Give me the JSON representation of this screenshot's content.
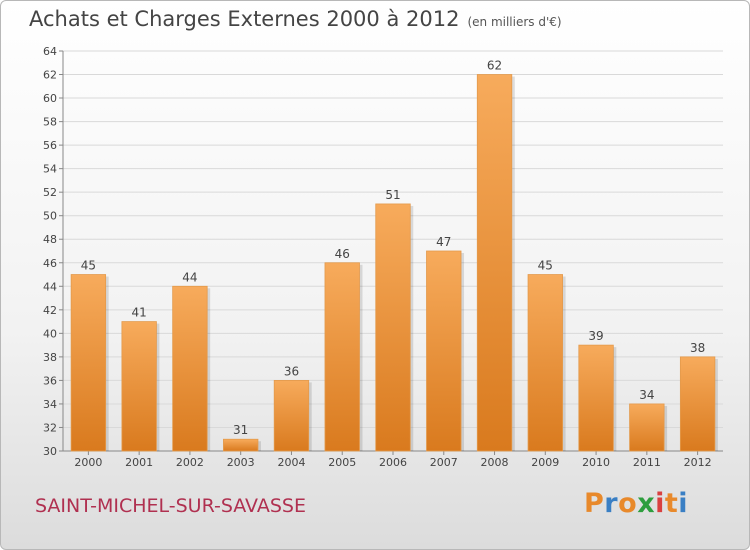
{
  "title": "Achats et Charges Externes 2000 à 2012",
  "title_unit": "(en milliers d'€)",
  "location": "SAINT-MICHEL-SUR-SAVASSE",
  "logo_text": "Proxiti",
  "logo_colors": [
    "#e8892b",
    "#3a7fc4",
    "#e8892b",
    "#2e9e3e",
    "#d94040",
    "#e8892b",
    "#3a7fc4"
  ],
  "colors": {
    "bar_light": "#f7ab5c",
    "bar_dark": "#d97a1e",
    "grid": "#d9d9d9"
  },
  "chart_data": {
    "type": "bar",
    "title": "Achats et Charges Externes 2000 à 2012",
    "xlabel": "",
    "ylabel": "",
    "categories": [
      "2000",
      "2001",
      "2002",
      "2003",
      "2004",
      "2005",
      "2006",
      "2007",
      "2008",
      "2009",
      "2010",
      "2011",
      "2012"
    ],
    "values": [
      45,
      41,
      44,
      31,
      36,
      46,
      51,
      47,
      62,
      45,
      39,
      34,
      38
    ],
    "ylim": [
      30,
      64
    ],
    "yticks": [
      30,
      32,
      34,
      36,
      38,
      40,
      42,
      44,
      46,
      48,
      50,
      52,
      54,
      56,
      58,
      60,
      62,
      64
    ],
    "grid": true
  }
}
